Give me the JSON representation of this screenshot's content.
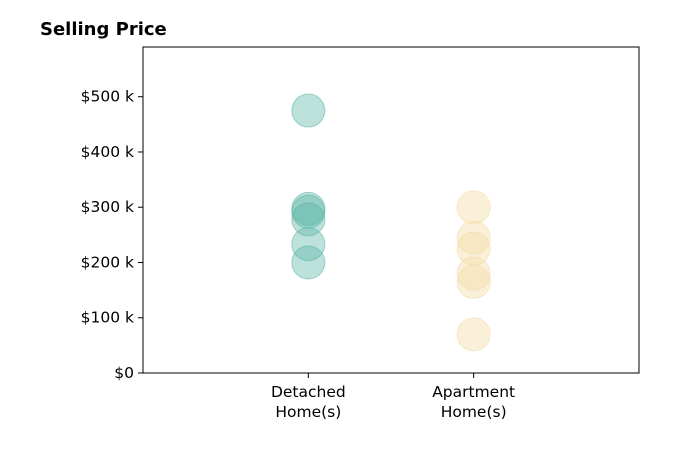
{
  "chart_data": {
    "type": "scatter",
    "title": "Selling Price",
    "xlabel": "",
    "ylabel": "",
    "categories": [
      [
        "Detached",
        "Home(s)"
      ],
      [
        "Apartment",
        "Home(s)"
      ]
    ],
    "ylim": [
      0,
      590000
    ],
    "xlim": [
      -1,
      2
    ],
    "yticks": [
      0,
      100000,
      200000,
      300000,
      400000,
      500000
    ],
    "ytick_labels": [
      "$0",
      "$100 k",
      "$200 k",
      "$300 k",
      "$400 k",
      "$500 k"
    ],
    "grid": false,
    "legend": "none",
    "series": [
      {
        "category_index": 0,
        "color": "#5ab4a5",
        "values": [
          475000,
          297000,
          292000,
          278000,
          233000,
          200000
        ]
      },
      {
        "category_index": 1,
        "color": "#f2d9a0",
        "values": [
          300000,
          245000,
          225000,
          180000,
          165000,
          70000
        ]
      }
    ]
  }
}
